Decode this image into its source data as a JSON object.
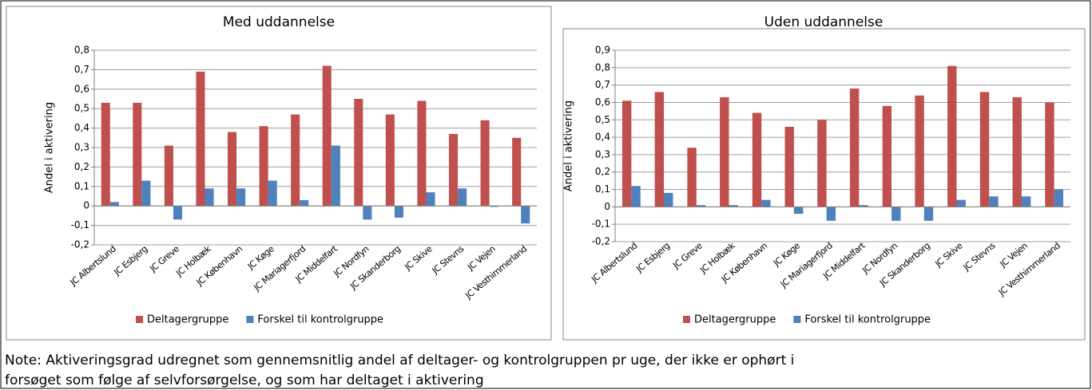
{
  "chart_data": [
    {
      "type": "bar",
      "title": "Med uddannelse",
      "y_label": "Andel i aktivering",
      "categories": [
        "JC Albertslund",
        "JC Esbjerg",
        "JC Greve",
        "JC Holbæk",
        "JC København",
        "JC Køge",
        "JC Mariagerfjord",
        "JC Middelfart",
        "JC Nordfyn",
        "JC Skanderborg",
        "JC Skive",
        "JC Stevns",
        "JC Vejen",
        "JC Vesthimmerland"
      ],
      "series": [
        {
          "name": "Deltagergruppe",
          "color": "#c0504d",
          "values": [
            0.53,
            0.53,
            0.31,
            0.69,
            0.38,
            0.41,
            0.47,
            0.72,
            0.55,
            0.47,
            0.54,
            0.37,
            0.44,
            0.35
          ]
        },
        {
          "name": "Forskel til kontrolgruppe",
          "color": "#4f81bd",
          "values": [
            0.02,
            0.13,
            -0.07,
            0.09,
            0.09,
            0.13,
            0.03,
            0.31,
            -0.07,
            -0.06,
            0.07,
            0.09,
            -0.005,
            -0.09
          ]
        }
      ],
      "ylim": [
        -0.2,
        0.8
      ],
      "yticks": [
        {
          "value": -0.2,
          "label": "-0,2"
        },
        {
          "value": -0.1,
          "label": "-0,1"
        },
        0,
        {
          "value": 0.1,
          "label": "0,1"
        },
        {
          "value": 0.2,
          "label": "0,2"
        },
        {
          "value": 0.3,
          "label": "0,3"
        },
        {
          "value": 0.4,
          "label": "0,4"
        },
        {
          "value": 0.5,
          "label": "0,5"
        },
        {
          "value": 0.6,
          "label": "0,6"
        },
        {
          "value": 0.7,
          "label": "0,7"
        },
        {
          "value": 0.8,
          "label": "0,8"
        }
      ],
      "grid": true,
      "legend": "bottom"
    },
    {
      "type": "bar",
      "title": "Uden uddannelse",
      "y_label": "Andel i aktivering",
      "categories": [
        "JC Albertslund",
        "JC Esbjerg",
        "JC Greve",
        "JC Holbæk",
        "JC København",
        "JC Køge",
        "JC Mariagerfjord",
        "JC Middelfart",
        "JC Nordfyn",
        "JC Skanderborg",
        "JC Skive",
        "JC Stevns",
        "JC Vejen",
        "JC Vesthimmerland"
      ],
      "series": [
        {
          "name": "Deltagergruppe",
          "color": "#c0504d",
          "values": [
            0.61,
            0.66,
            0.34,
            0.63,
            0.54,
            0.46,
            0.5,
            0.68,
            0.58,
            0.64,
            0.81,
            0.66,
            0.63,
            0.6
          ]
        },
        {
          "name": "Forskel til kontrolgruppe",
          "color": "#4f81bd",
          "values": [
            0.12,
            0.08,
            0.01,
            0.01,
            0.04,
            -0.04,
            -0.08,
            0.01,
            -0.08,
            -0.08,
            0.04,
            0.06,
            0.06,
            0.1
          ]
        }
      ],
      "ylim": [
        -0.2,
        0.9
      ],
      "yticks": [
        {
          "value": -0.2,
          "label": "-0,2"
        },
        {
          "value": -0.1,
          "label": "-0,1"
        },
        0,
        {
          "value": 0.1,
          "label": "0,1"
        },
        {
          "value": 0.2,
          "label": "0,2"
        },
        {
          "value": 0.3,
          "label": "0,3"
        },
        {
          "value": 0.4,
          "label": "0,4"
        },
        {
          "value": 0.5,
          "label": "0,5"
        },
        {
          "value": 0.6,
          "label": "0,6"
        },
        {
          "value": 0.7,
          "label": "0,7"
        },
        {
          "value": 0.8,
          "label": "0,8"
        },
        {
          "value": 0.9,
          "label": "0,9"
        }
      ],
      "grid": true,
      "legend": "bottom"
    }
  ],
  "note": [
    "Note: Aktiveringsgrad udregnet som gennemsnitlig andel af deltager- og kontrolgruppen pr uge, der ikke er ophørt i",
    "forsøget som følge af selvforsørgelse, og som har deltaget i aktivering"
  ]
}
